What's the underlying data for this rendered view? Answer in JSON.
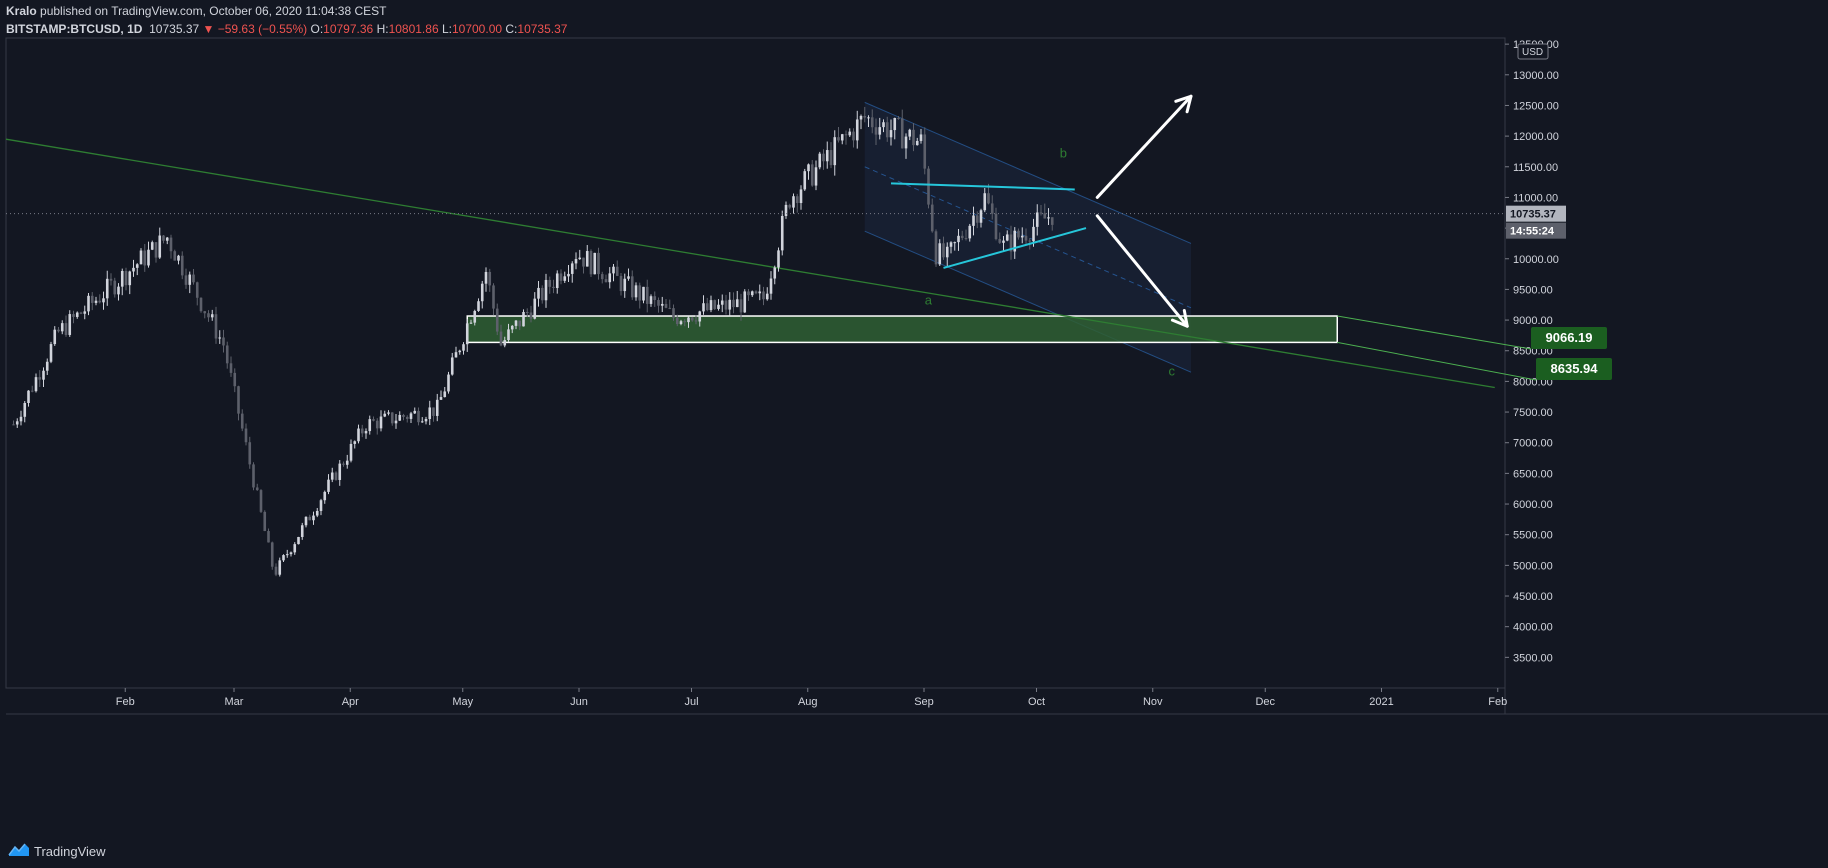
{
  "header": {
    "author": "Kralo",
    "published_text": "published on TradingView.com, October 06, 2020 11:04:38 CEST",
    "symbol": "BITSTAMP:BTCUSD, 1D",
    "last": "10735.37",
    "change": "▼ −59.63 (−0.55%)",
    "o_label": "O:",
    "o_value": "10797.36",
    "h_label": "H:",
    "h_value": "10801.86",
    "l_label": "L:",
    "l_value": "10700.00",
    "c_label": "C:",
    "c_value": "10735.37"
  },
  "footer": {
    "brand": "TradingView"
  },
  "colors": {
    "background": "#131722",
    "candle_up": "#d1d4dc",
    "candle_down": "#5d606b",
    "trendline": "#2e7d32",
    "zone_fill": "#2f5f32",
    "channel_fill": "#182033",
    "channel_line": "#2962a8",
    "triangle": "#26c6da",
    "price_label": "#1b5e20",
    "arrow": "#ffffff",
    "wave_label": "#2e7d32"
  },
  "chart_data": {
    "type": "candlestick",
    "timeframe": "1D",
    "currency_label": "USD",
    "y_ticks": [
      "13500.00",
      "13000.00",
      "12500.00",
      "12000.00",
      "11500.00",
      "11000.00",
      "10500.00",
      "10000.00",
      "9500.00",
      "9000.00",
      "8500.00",
      "8000.00",
      "7500.00",
      "7000.00",
      "6500.00",
      "6000.00",
      "5500.00",
      "5000.00",
      "4500.00",
      "4000.00",
      "3500.00"
    ],
    "ylim": [
      3000,
      13600
    ],
    "x_ticks": [
      "Feb",
      "Mar",
      "Apr",
      "May",
      "Jun",
      "Jul",
      "Aug",
      "Sep",
      "Oct",
      "Nov",
      "Dec",
      "2021",
      "Feb"
    ],
    "last_price_label": "10735.37",
    "countdown_label": "14:55:24",
    "anchors": [
      {
        "date": "2020-01-03",
        "price": 7300
      },
      {
        "date": "2020-01-15",
        "price": 8800
      },
      {
        "date": "2020-02-13",
        "price": 10350
      },
      {
        "date": "2020-02-28",
        "price": 8600
      },
      {
        "date": "2020-03-12",
        "price": 5000
      },
      {
        "date": "2020-03-13",
        "price": 4900
      },
      {
        "date": "2020-04-06",
        "price": 7300
      },
      {
        "date": "2020-04-25",
        "price": 7550
      },
      {
        "date": "2020-05-08",
        "price": 9800
      },
      {
        "date": "2020-05-12",
        "price": 8600
      },
      {
        "date": "2020-06-01",
        "price": 10100
      },
      {
        "date": "2020-06-27",
        "price": 9050
      },
      {
        "date": "2020-07-21",
        "price": 9350
      },
      {
        "date": "2020-07-28",
        "price": 11000
      },
      {
        "date": "2020-08-17",
        "price": 12300
      },
      {
        "date": "2020-09-01",
        "price": 11900
      },
      {
        "date": "2020-09-05",
        "price": 10100
      },
      {
        "date": "2020-09-08",
        "price": 10000
      },
      {
        "date": "2020-09-18",
        "price": 11000
      },
      {
        "date": "2020-09-23",
        "price": 10200
      },
      {
        "date": "2020-10-06",
        "price": 10735
      }
    ],
    "drawings": {
      "zone": {
        "from": "2020-05-03",
        "to": "2020-12-21",
        "top": 9066.19,
        "bottom": 8635.94,
        "top_label": "9066.19",
        "bottom_label": "8635.94"
      },
      "long_trendline": {
        "p1": {
          "date": "2020-01-01",
          "price": 11950
        },
        "p2": {
          "date": "2021-02-01",
          "price": 7900
        }
      },
      "channel": {
        "upper": {
          "p1": {
            "date": "2020-08-17",
            "price": 12550
          },
          "p2": {
            "date": "2020-11-12",
            "price": 10250
          }
        },
        "lower": {
          "p1": {
            "date": "2020-08-17",
            "price": 10450
          },
          "p2": {
            "date": "2020-11-12",
            "price": 8150
          }
        },
        "mid": {
          "p1": {
            "date": "2020-08-17",
            "price": 11500
          },
          "p2": {
            "date": "2020-11-12",
            "price": 9200
          }
        }
      },
      "triangle_upper": {
        "p1": {
          "date": "2020-08-24",
          "price": 11230
        },
        "p2": {
          "date": "2020-10-12",
          "price": 11130
        }
      },
      "triangle_lower": {
        "p1": {
          "date": "2020-09-07",
          "price": 9850
        },
        "p2": {
          "date": "2020-10-15",
          "price": 10500
        }
      },
      "arrow_up": {
        "p1": {
          "date": "2020-10-18",
          "price": 11000
        },
        "p2": {
          "date": "2020-11-12",
          "price": 12650
        }
      },
      "arrow_down": {
        "p1": {
          "date": "2020-10-18",
          "price": 10700
        },
        "p2": {
          "date": "2020-11-11",
          "price": 8900
        }
      },
      "wave_labels": [
        {
          "text": "a",
          "date": "2020-09-02",
          "price": 9250
        },
        {
          "text": "b",
          "date": "2020-10-08",
          "price": 11650
        },
        {
          "text": "c",
          "date": "2020-11-06",
          "price": 8100
        }
      ]
    }
  }
}
